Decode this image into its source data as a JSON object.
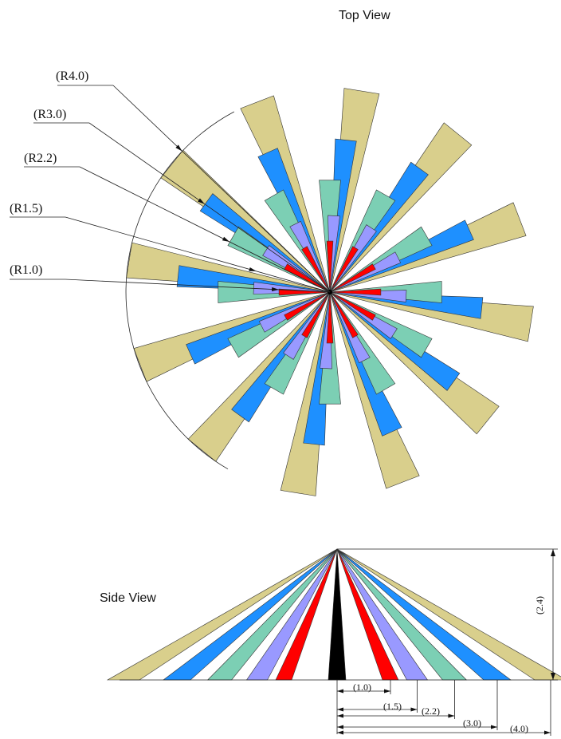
{
  "top_view": {
    "title": "Top View",
    "center_label": "",
    "radius_labels": [
      "(R1.0)",
      "(R1.5)",
      "(R2.2)",
      "(R3.0)",
      "(R4.0)"
    ]
  },
  "side_view": {
    "title": "Side View",
    "height_label": "(2.4)",
    "distance_labels": [
      "(1.0)",
      "(1.5)",
      "(2.2)",
      "(3.0)",
      "(4.0)"
    ]
  },
  "rings": [
    {
      "radius": 1.0,
      "color": "#ff0000",
      "count": 12
    },
    {
      "radius": 1.5,
      "color": "#9999ff",
      "count": 12
    },
    {
      "radius": 2.2,
      "color": "#7ccfb4",
      "count": 12
    },
    {
      "radius": 3.0,
      "color": "#1e90ff",
      "count": 12
    },
    {
      "radius": 4.0,
      "color": "#d9cf8c",
      "count": 12
    }
  ],
  "center_color": "#000000"
}
